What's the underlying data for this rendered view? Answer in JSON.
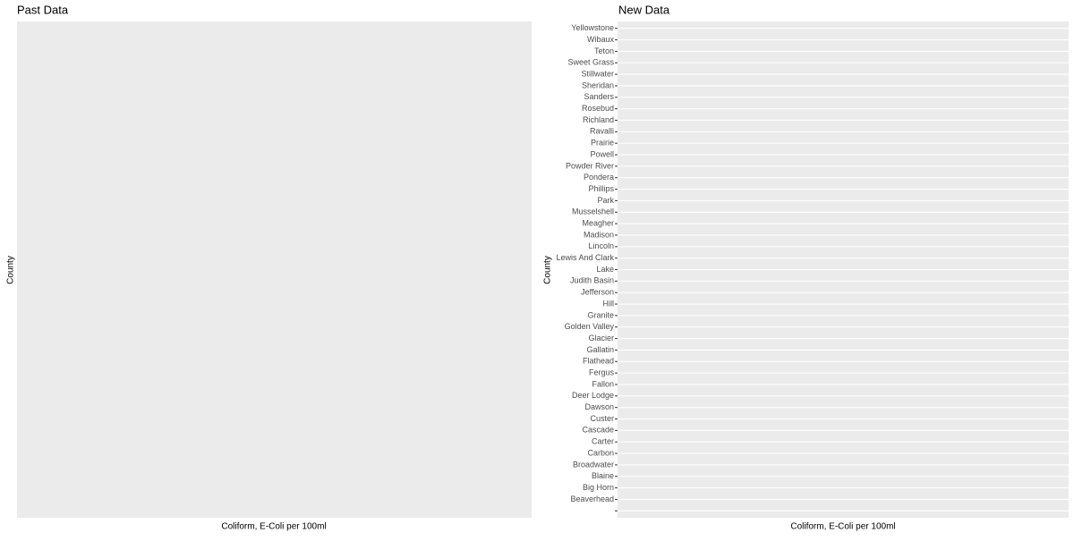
{
  "chart_data": [
    {
      "type": "bar",
      "title": "Past Data",
      "x_label": "Coliform, E-Coli per 100ml",
      "y_label": "County"
    },
    {
      "type": "bar",
      "title": "New Data",
      "x_label": "Coliform, E-Coli per 100ml",
      "y_label": "County",
      "categories": [
        null,
        "Beaverhead",
        "Big Horn",
        "Blaine",
        "Broadwater",
        "Carbon",
        "Carter",
        "Cascade",
        "Custer",
        "Dawson",
        "Deer Lodge",
        "Fallon",
        "Fergus",
        "Flathead",
        "Gallatin",
        "Glacier",
        "Golden Valley",
        "Granite",
        "Hill",
        "Jefferson",
        "Judith Basin",
        "Lake",
        "Lewis And Clark",
        "Lincoln",
        "Madison",
        "Meagher",
        "Musselshell",
        "Park",
        "Phillips",
        "Pondera",
        "Powder River",
        "Powell",
        "Prairie",
        "Ravalli",
        "Richland",
        "Rosebud",
        "Sanders",
        "Sheridan",
        "Stillwater",
        "Sweet Grass",
        "Teton",
        "Wibaux",
        "Yellowstone"
      ]
    }
  ]
}
